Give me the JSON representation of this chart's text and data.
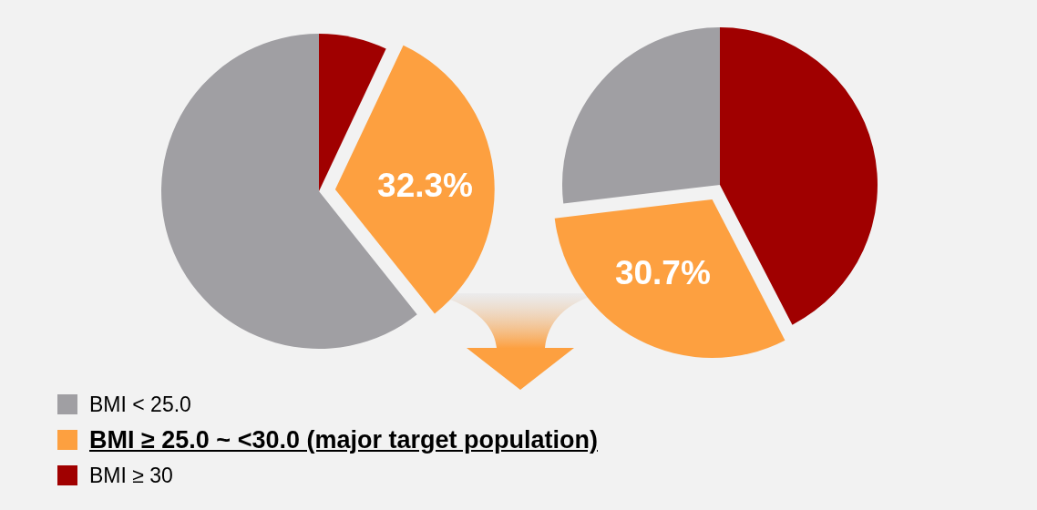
{
  "chart_data": {
    "type": "pie",
    "categories": [
      "BMI < 25.0",
      "BMI ≥ 25.0 ~ <30.0 (major target population)",
      "BMI ≥ 30"
    ],
    "colors": [
      "#a09fa3",
      "#fda040",
      "#a00000"
    ],
    "legend": "bottom left",
    "series": [
      {
        "values": [
          60.7,
          32.3,
          7.0
        ],
        "value_labels": [
          null,
          "32.3%",
          null
        ]
      },
      {
        "values": [
          26.9,
          30.7,
          42.4
        ],
        "value_labels": [
          null,
          "30.7%",
          null
        ]
      }
    ]
  }
}
